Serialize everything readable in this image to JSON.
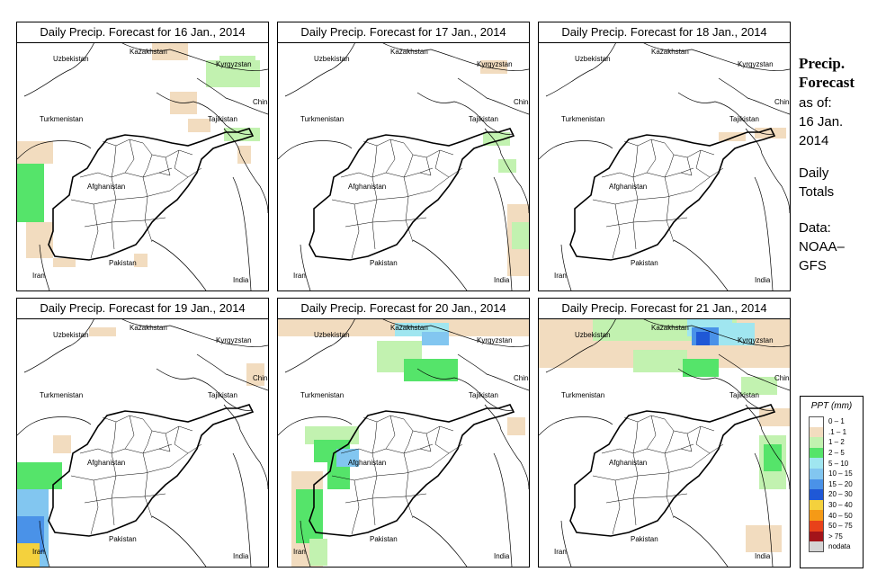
{
  "panels": [
    {
      "title": "Daily Precip. Forecast for  16 Jan., 2014"
    },
    {
      "title": "Daily Precip. Forecast for  17 Jan., 2014"
    },
    {
      "title": "Daily Precip. Forecast for  18 Jan., 2014"
    },
    {
      "title": "Daily Precip. Forecast for  19 Jan., 2014"
    },
    {
      "title": "Daily Precip. Forecast for  20 Jan., 2014"
    },
    {
      "title": "Daily Precip. Forecast for  21 Jan., 2014"
    }
  ],
  "countries": {
    "uzbekistan": "Uzbekistan",
    "kazakhstan": "Kazakhstan",
    "kyrgyzstan": "Kyrgyzstan",
    "china": "China",
    "turkmenistan": "Turkmenistan",
    "tajikistan": "Tajikistan",
    "afghanistan": "Afghanistan",
    "iran": "Iran",
    "pakistan": "Pakistan",
    "india": "India"
  },
  "side": {
    "title_line1": "Precip.",
    "title_line2": "Forecast",
    "asof": "as of:",
    "date_line1": "16 Jan.",
    "date_line2": "2014",
    "totals_line1": "Daily",
    "totals_line2": "Totals",
    "data_line1": "Data:",
    "data_line2": "NOAA–",
    "data_line3": "GFS"
  },
  "legend": {
    "title": "PPT (mm)",
    "items": [
      {
        "label": "0 – 1",
        "color": "#ffffff"
      },
      {
        "label": ".1 – 1",
        "color": "#f2dcbf"
      },
      {
        "label": "1 – 2",
        "color": "#c2f2b0"
      },
      {
        "label": "2 – 5",
        "color": "#55e46a"
      },
      {
        "label": "5 – 10",
        "color": "#a0e6f0"
      },
      {
        "label": "10 – 15",
        "color": "#82c6f0"
      },
      {
        "label": "15 – 20",
        "color": "#4a92e8"
      },
      {
        "label": "20 – 30",
        "color": "#1f58d6"
      },
      {
        "label": "30 – 40",
        "color": "#f4d13d"
      },
      {
        "label": "40 – 50",
        "color": "#f59a16"
      },
      {
        "label": "50 – 75",
        "color": "#e8421a"
      },
      {
        "label": "> 75",
        "color": "#a3141a"
      },
      {
        "label": "nodata",
        "color": "#d4d4d4"
      }
    ]
  }
}
